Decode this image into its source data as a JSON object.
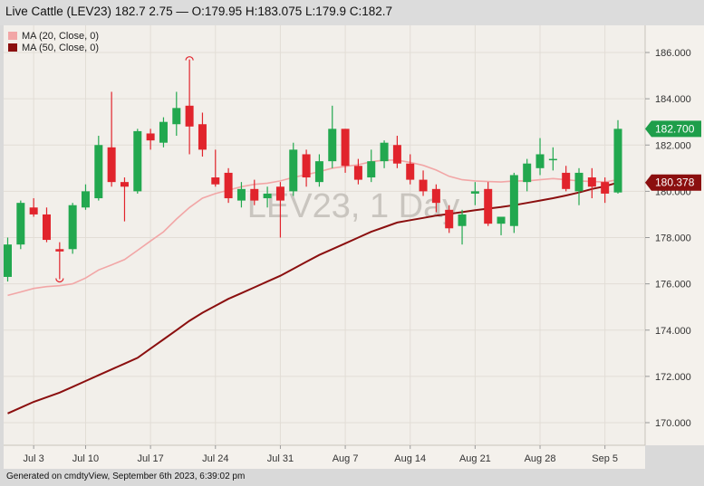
{
  "header": {
    "title": "Live Cattle (LEV23) 182.7 2.75 — O:179.95 H:183.075 L:179.9 C:182.7"
  },
  "footer": {
    "generated": "Generated on cmdtyView, September 6th 2023, 6:39:02 pm"
  },
  "chart_data": {
    "type": "candlestick",
    "watermark": "LEV23, 1 Day",
    "legend": [
      {
        "label": "MA (20, Close, 0)",
        "color": "#f2a6a6"
      },
      {
        "label": "MA (50, Close, 0)",
        "color": "#8b0f0f"
      }
    ],
    "ylim": [
      169.0,
      187.0
    ],
    "y_ticks": [
      "170.000",
      "172.000",
      "174.000",
      "176.000",
      "178.000",
      "180.000",
      "182.000",
      "184.000",
      "186.000"
    ],
    "x_ticks": [
      {
        "label": "Jul 3",
        "index": 2
      },
      {
        "label": "Jul 10",
        "index": 6
      },
      {
        "label": "Jul 17",
        "index": 11
      },
      {
        "label": "Jul 24",
        "index": 16
      },
      {
        "label": "Jul 31",
        "index": 21
      },
      {
        "label": "Aug 7",
        "index": 26
      },
      {
        "label": "Aug 14",
        "index": 31
      },
      {
        "label": "Aug 21",
        "index": 36
      },
      {
        "label": "Aug 28",
        "index": 41
      },
      {
        "label": "Sep 5",
        "index": 46
      }
    ],
    "candles": [
      {
        "o": 176.3,
        "h": 178.0,
        "l": 176.1,
        "c": 177.7
      },
      {
        "o": 177.7,
        "h": 179.6,
        "l": 177.5,
        "c": 179.5
      },
      {
        "o": 179.3,
        "h": 179.7,
        "l": 178.9,
        "c": 179.0
      },
      {
        "o": 179.0,
        "h": 179.3,
        "l": 177.8,
        "c": 177.9
      },
      {
        "o": 177.5,
        "h": 177.8,
        "l": 176.2,
        "c": 177.4
      },
      {
        "o": 177.5,
        "h": 179.5,
        "l": 177.3,
        "c": 179.4
      },
      {
        "o": 179.3,
        "h": 180.3,
        "l": 179.2,
        "c": 180.0
      },
      {
        "o": 179.7,
        "h": 182.4,
        "l": 179.6,
        "c": 182.0
      },
      {
        "o": 181.9,
        "h": 184.3,
        "l": 180.2,
        "c": 180.4
      },
      {
        "o": 180.4,
        "h": 180.6,
        "l": 178.7,
        "c": 180.2
      },
      {
        "o": 180.0,
        "h": 182.7,
        "l": 179.9,
        "c": 182.6
      },
      {
        "o": 182.5,
        "h": 182.7,
        "l": 181.8,
        "c": 182.2
      },
      {
        "o": 182.1,
        "h": 183.2,
        "l": 181.9,
        "c": 183.0
      },
      {
        "o": 182.9,
        "h": 184.3,
        "l": 182.4,
        "c": 183.6
      },
      {
        "o": 183.7,
        "h": 185.7,
        "l": 181.6,
        "c": 182.8
      },
      {
        "o": 182.9,
        "h": 183.4,
        "l": 181.5,
        "c": 181.8
      },
      {
        "o": 180.6,
        "h": 181.8,
        "l": 180.2,
        "c": 180.3
      },
      {
        "o": 180.8,
        "h": 181.0,
        "l": 179.5,
        "c": 179.7
      },
      {
        "o": 179.6,
        "h": 180.4,
        "l": 179.3,
        "c": 180.1
      },
      {
        "o": 180.1,
        "h": 180.5,
        "l": 179.4,
        "c": 179.6
      },
      {
        "o": 179.7,
        "h": 180.2,
        "l": 179.3,
        "c": 179.9
      },
      {
        "o": 180.2,
        "h": 180.4,
        "l": 178.0,
        "c": 179.6
      },
      {
        "o": 180.0,
        "h": 182.1,
        "l": 179.8,
        "c": 181.8
      },
      {
        "o": 181.6,
        "h": 181.8,
        "l": 180.2,
        "c": 180.6
      },
      {
        "o": 180.4,
        "h": 181.6,
        "l": 180.2,
        "c": 181.3
      },
      {
        "o": 181.3,
        "h": 183.7,
        "l": 181.0,
        "c": 182.7
      },
      {
        "o": 182.7,
        "h": 182.7,
        "l": 180.8,
        "c": 181.1
      },
      {
        "o": 181.1,
        "h": 181.4,
        "l": 180.3,
        "c": 180.5
      },
      {
        "o": 180.6,
        "h": 181.8,
        "l": 180.4,
        "c": 181.3
      },
      {
        "o": 181.3,
        "h": 182.2,
        "l": 181.0,
        "c": 182.1
      },
      {
        "o": 182.0,
        "h": 182.4,
        "l": 181.0,
        "c": 181.2
      },
      {
        "o": 181.2,
        "h": 181.6,
        "l": 180.3,
        "c": 180.5
      },
      {
        "o": 180.5,
        "h": 180.9,
        "l": 179.8,
        "c": 180.0
      },
      {
        "o": 180.1,
        "h": 180.3,
        "l": 179.1,
        "c": 179.5
      },
      {
        "o": 179.2,
        "h": 179.4,
        "l": 178.2,
        "c": 178.4
      },
      {
        "o": 178.5,
        "h": 179.2,
        "l": 177.7,
        "c": 179.0
      },
      {
        "o": 179.9,
        "h": 180.4,
        "l": 179.4,
        "c": 180.0
      },
      {
        "o": 180.1,
        "h": 180.4,
        "l": 178.5,
        "c": 178.6
      },
      {
        "o": 178.6,
        "h": 178.9,
        "l": 178.1,
        "c": 178.9
      },
      {
        "o": 178.5,
        "h": 180.8,
        "l": 178.2,
        "c": 180.7
      },
      {
        "o": 180.4,
        "h": 181.4,
        "l": 180.0,
        "c": 181.2
      },
      {
        "o": 181.0,
        "h": 182.3,
        "l": 180.7,
        "c": 181.6
      },
      {
        "o": 181.4,
        "h": 181.9,
        "l": 180.9,
        "c": 181.4
      },
      {
        "o": 180.8,
        "h": 181.1,
        "l": 180.0,
        "c": 180.1
      },
      {
        "o": 180.0,
        "h": 181.0,
        "l": 179.4,
        "c": 180.8
      },
      {
        "o": 180.6,
        "h": 181.0,
        "l": 179.7,
        "c": 180.2
      },
      {
        "o": 180.4,
        "h": 180.6,
        "l": 179.5,
        "c": 179.9
      },
      {
        "o": 179.95,
        "h": 183.075,
        "l": 179.9,
        "c": 182.7
      }
    ],
    "ma20": [
      175.5,
      175.65,
      175.8,
      175.88,
      175.92,
      176.0,
      176.25,
      176.6,
      176.82,
      177.05,
      177.45,
      177.85,
      178.25,
      178.8,
      179.3,
      179.7,
      179.9,
      180.05,
      180.2,
      180.3,
      180.35,
      180.45,
      180.6,
      180.72,
      180.85,
      181.0,
      181.08,
      181.15,
      181.28,
      181.35,
      181.35,
      181.25,
      181.12,
      180.92,
      180.65,
      180.5,
      180.45,
      180.42,
      180.4,
      180.45,
      180.45,
      180.5,
      180.55,
      180.5,
      180.45,
      180.42,
      180.4,
      180.5
    ],
    "ma50": [
      170.4,
      170.65,
      170.9,
      171.1,
      171.3,
      171.55,
      171.8,
      172.05,
      172.3,
      172.55,
      172.8,
      173.2,
      173.6,
      174.0,
      174.4,
      174.75,
      175.05,
      175.35,
      175.6,
      175.85,
      176.1,
      176.35,
      176.65,
      176.95,
      177.25,
      177.5,
      177.75,
      178.0,
      178.25,
      178.45,
      178.65,
      178.75,
      178.85,
      178.95,
      179.02,
      179.1,
      179.18,
      179.25,
      179.32,
      179.4,
      179.5,
      179.6,
      179.7,
      179.82,
      179.95,
      180.1,
      180.22,
      180.378
    ],
    "price_labels": [
      {
        "value": 182.7,
        "text": "182.700",
        "color": "#1e9e4a"
      },
      {
        "value": 180.378,
        "text": "180.378",
        "color": "#8b0f0f"
      }
    ],
    "colors": {
      "up": "#22a84f",
      "down": "#e1242c",
      "background": "#f2efea",
      "grid": "#e2ddd6"
    }
  }
}
